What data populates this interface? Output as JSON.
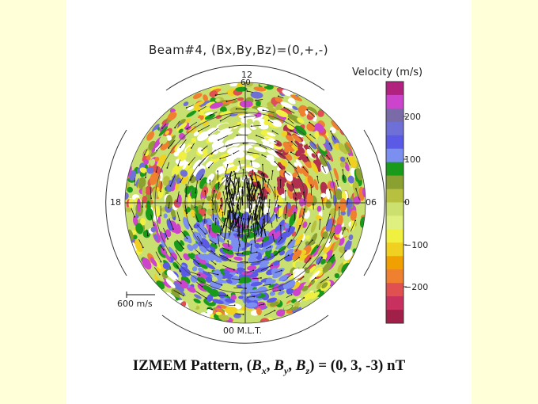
{
  "plot": {
    "title": "Beam#4, (Bx,By,Bz)=(0,+,-)",
    "mlt_labels": {
      "top": "12",
      "left": "18",
      "right": "06",
      "bottom": "00 M.L.T."
    },
    "latitude_label": "60",
    "scale_vector_label": "600 m/s"
  },
  "colorbar": {
    "title": "Velocity (m/s)",
    "ticks": [
      "200",
      "100",
      "0",
      "−100",
      "−200"
    ],
    "colors": [
      "#b0227e",
      "#cc44cc",
      "#7a6aa8",
      "#6f6fd8",
      "#5a5ae6",
      "#7b8ff0",
      "#1a9a1a",
      "#8aa030",
      "#b8c040",
      "#cce070",
      "#e0f080",
      "#f0f040",
      "#f0d020",
      "#f0a000",
      "#ee8030",
      "#e05050",
      "#c83060",
      "#a0204a"
    ]
  },
  "caption": {
    "text_before": "IZMEM Pattern, (",
    "bx": "B",
    "bx_sub": "x",
    "by": "B",
    "by_sub": "y",
    "bz": "B",
    "bz_sub": "z",
    "text_after": ") = (0, 3, -3) nT"
  }
}
